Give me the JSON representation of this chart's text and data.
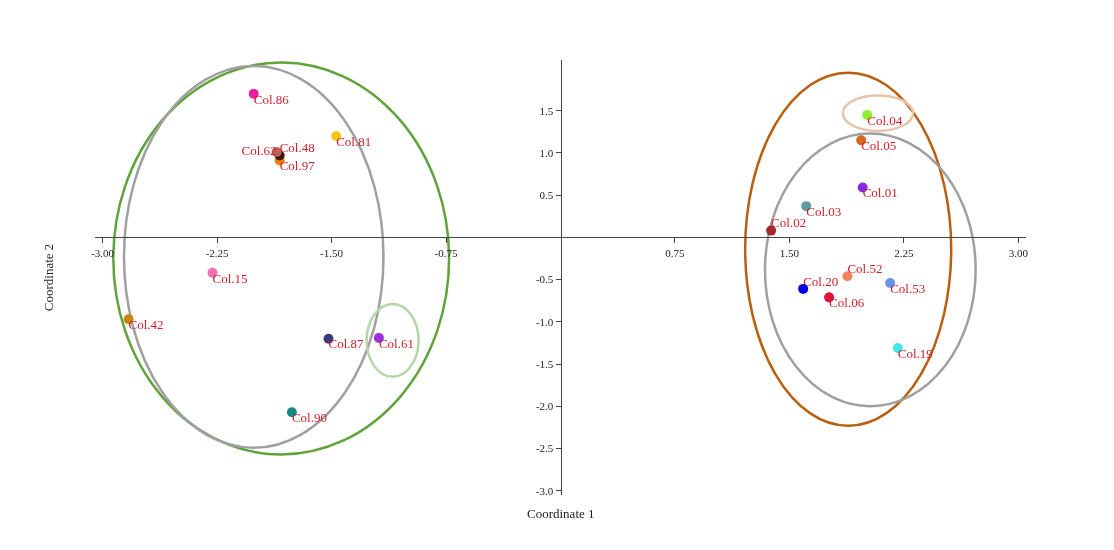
{
  "chart_data": {
    "type": "scatter",
    "xlabel": "Coordinate 1",
    "ylabel": "Coordinate 2",
    "xlim": [
      -3.05,
      3.05
    ],
    "ylim": [
      -3.05,
      2.1
    ],
    "xticks": [
      {
        "value": -3,
        "label": "-3.00"
      },
      {
        "value": -2.25,
        "label": "-2.25"
      },
      {
        "value": -1.5,
        "label": "-1.50"
      },
      {
        "value": -0.75,
        "label": "-0.75"
      },
      {
        "value": 0.75,
        "label": "0.75"
      },
      {
        "value": 1.5,
        "label": "1.50"
      },
      {
        "value": 2.25,
        "label": "2.25"
      },
      {
        "value": 3,
        "label": "3.00"
      }
    ],
    "yticks": [
      1.5,
      {
        "value": 1,
        "label": "1.0"
      },
      0.5,
      -0.5,
      {
        "value": -1,
        "label": "-1.0"
      },
      -1.5,
      {
        "value": -2,
        "label": "-2.0"
      },
      -2.5,
      {
        "value": -3,
        "label": "-3.0"
      }
    ],
    "grid": false,
    "legend": false,
    "marker": "circle",
    "series": [
      {
        "name": "Col.86",
        "color": "#e8219a",
        "x": [
          -2.01
        ],
        "values": [
          1.7
        ]
      },
      {
        "name": "Col.81",
        "color": "#f5c518",
        "x": [
          -1.47
        ],
        "values": [
          1.2
        ]
      },
      {
        "name": "Col.62",
        "color": "#c0605a",
        "x": [
          -1.86
        ],
        "values": [
          1.01
        ]
      },
      {
        "name": "Col.48",
        "color": "#3a1a10",
        "x": [
          -1.84
        ],
        "values": [
          0.97
        ]
      },
      {
        "name": "Col.97",
        "color": "#f07f10",
        "x": [
          -1.84
        ],
        "values": [
          0.91
        ]
      },
      {
        "name": "Col.15",
        "color": "#f06fb4",
        "x": [
          -2.28
        ],
        "values": [
          -0.42
        ]
      },
      {
        "name": "Col.42",
        "color": "#c8860a",
        "x": [
          -2.83
        ],
        "values": [
          -0.97
        ]
      },
      {
        "name": "Col.87",
        "color": "#3a3a78",
        "x": [
          -1.52
        ],
        "values": [
          -1.2
        ]
      },
      {
        "name": "Col.61",
        "color": "#9a30d8",
        "x": [
          -1.19
        ],
        "values": [
          -1.19
        ]
      },
      {
        "name": "Col.90",
        "color": "#168a80",
        "x": [
          -1.76
        ],
        "values": [
          -2.07
        ]
      },
      {
        "name": "Col.04",
        "color": "#8fee30",
        "x": [
          2.01
        ],
        "values": [
          1.45
        ]
      },
      {
        "name": "Col.05",
        "color": "#d2691e",
        "x": [
          1.97
        ],
        "values": [
          1.15
        ]
      },
      {
        "name": "Col.01",
        "color": "#8a2be2",
        "x": [
          1.98
        ],
        "values": [
          0.59
        ]
      },
      {
        "name": "Col.03",
        "color": "#5f9ea0",
        "x": [
          1.61
        ],
        "values": [
          0.37
        ]
      },
      {
        "name": "Col.02",
        "color": "#a52a2a",
        "x": [
          1.38
        ],
        "values": [
          0.08
        ]
      },
      {
        "name": "Col.52",
        "color": "#f4845f",
        "x": [
          1.88
        ],
        "values": [
          -0.46
        ]
      },
      {
        "name": "Col.53",
        "color": "#6495ed",
        "x": [
          2.16
        ],
        "values": [
          -0.54
        ]
      },
      {
        "name": "Col.20",
        "color": "#0000e0",
        "x": [
          1.59
        ],
        "values": [
          -0.61
        ]
      },
      {
        "name": "Col.06",
        "color": "#dc143c",
        "x": [
          1.76
        ],
        "values": [
          -0.71
        ]
      },
      {
        "name": "Col.19",
        "color": "#40e8f0",
        "x": [
          2.21
        ],
        "values": [
          -1.31
        ]
      }
    ]
  }
}
